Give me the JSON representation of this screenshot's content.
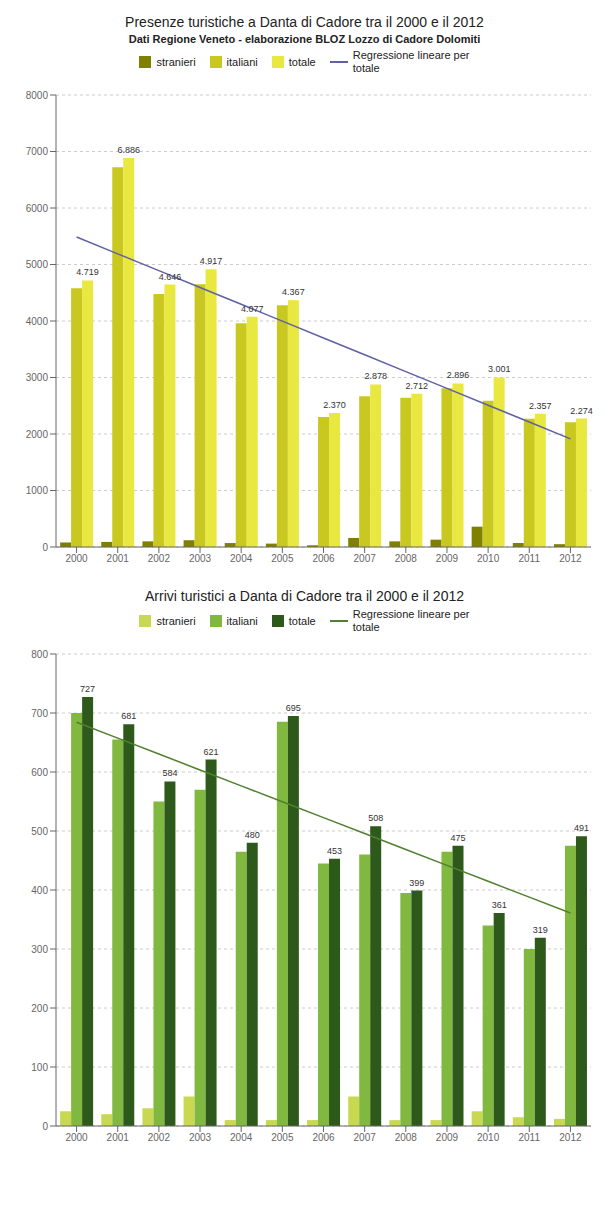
{
  "chart_data": [
    {
      "type": "bar",
      "title": "Presenze turistiche a Danta di Cadore tra il 2000 e il 2012",
      "subtitle": "Dati Regione Veneto - elaborazione BLOZ Lozzo di Cadore Dolomiti",
      "categories": [
        "2000",
        "2001",
        "2002",
        "2003",
        "2004",
        "2005",
        "2006",
        "2007",
        "2008",
        "2009",
        "2010",
        "2011",
        "2012"
      ],
      "series": [
        {
          "name": "stranieri",
          "color": "#808000",
          "values": [
            80,
            90,
            100,
            120,
            70,
            60,
            30,
            160,
            100,
            130,
            360,
            70,
            50
          ]
        },
        {
          "name": "italiani",
          "color": "#c8c820",
          "values": [
            4580,
            6720,
            4480,
            4650,
            3960,
            4280,
            2300,
            2670,
            2640,
            2810,
            2590,
            2270,
            2210
          ]
        },
        {
          "name": "totale",
          "color": "#e8e840",
          "values": [
            4719,
            6886,
            4646,
            4917,
            4077,
            4367,
            2370,
            2878,
            2712,
            2896,
            3001,
            2357,
            2274
          ],
          "value_labels": [
            "4.719",
            "6.886",
            "4.646",
            "4.917",
            "4.077",
            "4.367",
            "2.370",
            "2.878",
            "2.712",
            "2.896",
            "3.001",
            "2.357",
            "2.274"
          ],
          "data_labels": true
        },
        {
          "name": "Regressione lineare per\ntotale",
          "type": "line",
          "color": "#6060a8",
          "values": [
            5486.05,
            5188.38,
            4890.7,
            4593.03,
            4295.35,
            3997.68,
            3700,
            3402.32,
            3104.65,
            2806.97,
            2509.3,
            2211.62,
            1913.95
          ]
        }
      ],
      "ylim": [
        0,
        8000
      ],
      "yticks": [
        0,
        1000,
        2000,
        3000,
        4000,
        5000,
        6000,
        7000,
        8000
      ],
      "grid": true,
      "legend": "top"
    },
    {
      "type": "bar",
      "title": "Arrivi turistici  a Danta di  Cadore tra il 2000 e il 2012",
      "categories": [
        "2000",
        "2001",
        "2002",
        "2003",
        "2004",
        "2005",
        "2006",
        "2007",
        "2008",
        "2009",
        "2010",
        "2011",
        "2012"
      ],
      "series": [
        {
          "name": "stranieri",
          "color": "#c8d850",
          "values": [
            25,
            20,
            30,
            50,
            10,
            10,
            10,
            50,
            10,
            10,
            25,
            15,
            12
          ]
        },
        {
          "name": "italiani",
          "color": "#80b840",
          "values": [
            700,
            655,
            550,
            570,
            465,
            685,
            445,
            460,
            395,
            465,
            340,
            300,
            475
          ]
        },
        {
          "name": "totale",
          "color": "#2d5a1b",
          "values": [
            727,
            681,
            584,
            621,
            480,
            695,
            453,
            508,
            399,
            475,
            361,
            319,
            491
          ],
          "data_labels": true
        },
        {
          "name": "Regressione lineare per\ntotale",
          "type": "line",
          "color": "#508030",
          "values": [
            684.32,
            657.37,
            630.42,
            603.47,
            576.52,
            549.57,
            522.62,
            495.66,
            468.71,
            441.76,
            414.81,
            387.86,
            360.91
          ]
        }
      ],
      "ylim": [
        0,
        800
      ],
      "yticks": [
        0,
        100,
        200,
        300,
        400,
        500,
        600,
        700,
        800
      ],
      "grid": true,
      "legend": "top"
    }
  ]
}
